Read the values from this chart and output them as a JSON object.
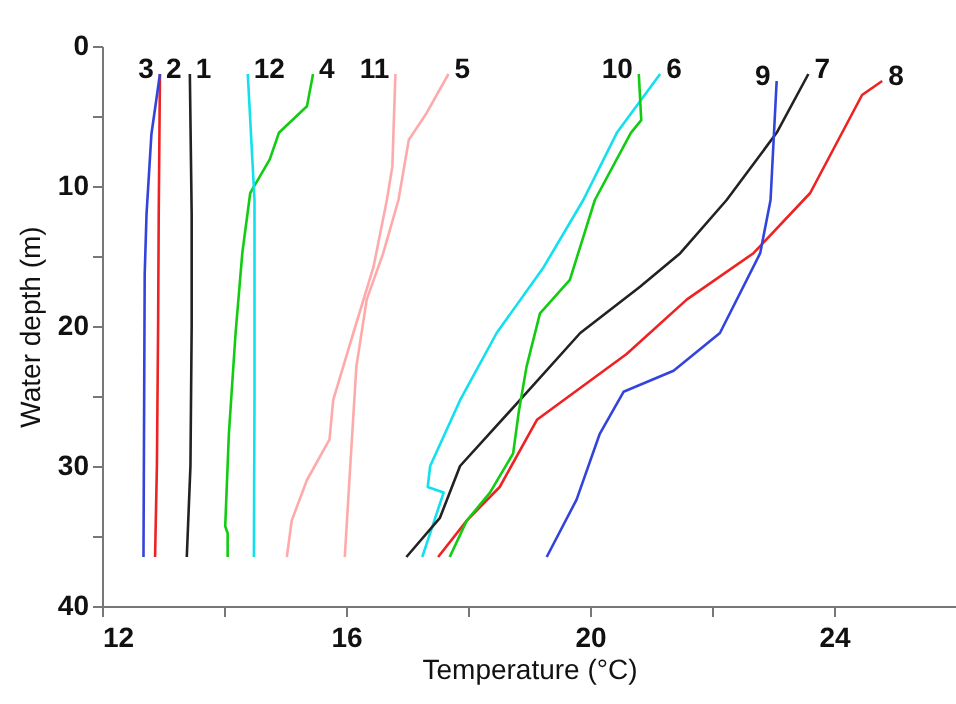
{
  "chart_data": {
    "type": "line",
    "xlabel": "Temperature (°C)",
    "ylabel": "Water depth (m)",
    "xlim": [
      12,
      26
    ],
    "xticks": [
      12,
      {
        "value": 14,
        "label": null
      },
      16,
      {
        "value": 18,
        "label": null
      },
      20,
      {
        "value": 22,
        "label": null
      },
      24
    ],
    "ylim": [
      40,
      0
    ],
    "yticks": [
      0,
      {
        "value": 5,
        "label": null
      },
      10,
      {
        "value": 15,
        "label": null
      },
      20,
      {
        "value": 25,
        "label": null
      },
      30,
      {
        "value": 35,
        "label": null
      },
      40
    ],
    "grid": false,
    "legend": false,
    "marker": "none",
    "line_style": "solid",
    "series": [
      {
        "name": "1",
        "color": "#222222",
        "x": [
          13.44,
          13.47,
          13.47,
          13.45,
          13.39
        ],
        "values": [
          2,
          12,
          20,
          30,
          36.5
        ]
      },
      {
        "name": "2",
        "color": "#ee2222",
        "x": [
          12.95,
          12.93,
          12.92,
          12.9,
          12.87
        ],
        "values": [
          2,
          12,
          20,
          30,
          36.5
        ]
      },
      {
        "name": "3",
        "color": "#3344dd",
        "x": [
          12.95,
          12.81,
          12.73,
          12.7,
          12.68
        ],
        "values": [
          2,
          6.3,
          12,
          16.3,
          36.5
        ]
      },
      {
        "name": "4",
        "color": "#11cc11",
        "x": [
          15.46,
          15.36,
          14.9,
          14.75,
          14.43,
          14.3,
          14.19,
          14.08,
          14.02,
          14.06,
          14.06
        ],
        "values": [
          2,
          4.3,
          6.2,
          8.1,
          10.5,
          14.8,
          20.5,
          27.7,
          34.3,
          34.8,
          36.5
        ]
      },
      {
        "name": "5",
        "color": "#ffaaaa",
        "x": [
          17.68,
          17.32,
          17.03,
          16.86,
          16.61,
          16.34,
          16.17,
          16.07,
          15.98
        ],
        "values": [
          2,
          4.8,
          6.7,
          11,
          14.8,
          18.1,
          22.9,
          30,
          36.5
        ]
      },
      {
        "name": "6",
        "color": "#11e0ee",
        "x": [
          21.15,
          20.44,
          19.89,
          19.24,
          18.47,
          17.87,
          17.38,
          17.34,
          17.6,
          17.25
        ],
        "values": [
          2,
          6.2,
          11,
          15.8,
          20.5,
          25.3,
          30,
          31.5,
          31.9,
          36.5
        ]
      },
      {
        "name": "7",
        "color": "#222222",
        "x": [
          23.58,
          23.06,
          22.24,
          21.48,
          20.82,
          19.84,
          18.85,
          17.87,
          17.54,
          16.99
        ],
        "values": [
          2,
          6.2,
          11,
          14.8,
          17.2,
          20.5,
          25.3,
          30,
          33.7,
          36.5
        ]
      },
      {
        "name": "8",
        "color": "#ee2222",
        "x": [
          24.79,
          24.46,
          23.61,
          22.68,
          21.59,
          20.6,
          19.13,
          18.52,
          17.98,
          17.51
        ],
        "values": [
          2.5,
          3.5,
          10.5,
          14.8,
          18.1,
          22,
          26.7,
          31.5,
          33.9,
          36.5
        ]
      },
      {
        "name": "9",
        "color": "#3344dd",
        "x": [
          23.06,
          22.96,
          22.79,
          22.13,
          21.37,
          20.55,
          20.16,
          19.78,
          19.29
        ],
        "values": [
          2.5,
          11,
          14.8,
          20.5,
          23.2,
          24.7,
          27.7,
          32.4,
          36.5
        ]
      },
      {
        "name": "10",
        "color": "#11cc11",
        "x": [
          20.8,
          20.84,
          20.67,
          20.08,
          19.67,
          19.18,
          18.96,
          18.83,
          18.74,
          18.36,
          17.98,
          17.7
        ],
        "values": [
          2,
          5.3,
          6.2,
          11,
          16.7,
          19.1,
          22.9,
          26.2,
          29.1,
          31.9,
          33.9,
          36.5
        ]
      },
      {
        "name": "11",
        "color": "#ffaaaa",
        "x": [
          16.81,
          16.76,
          16.67,
          16.45,
          16.12,
          15.79,
          15.73,
          15.36,
          15.11,
          15.03
        ],
        "values": [
          2,
          8.6,
          11,
          15.8,
          20.5,
          25.3,
          28.1,
          31,
          33.9,
          36.5
        ]
      },
      {
        "name": "12",
        "color": "#11e0ee",
        "x": [
          14.39,
          14.5,
          14.5,
          14.49
        ],
        "values": [
          2,
          11,
          25,
          36.5
        ]
      }
    ]
  }
}
